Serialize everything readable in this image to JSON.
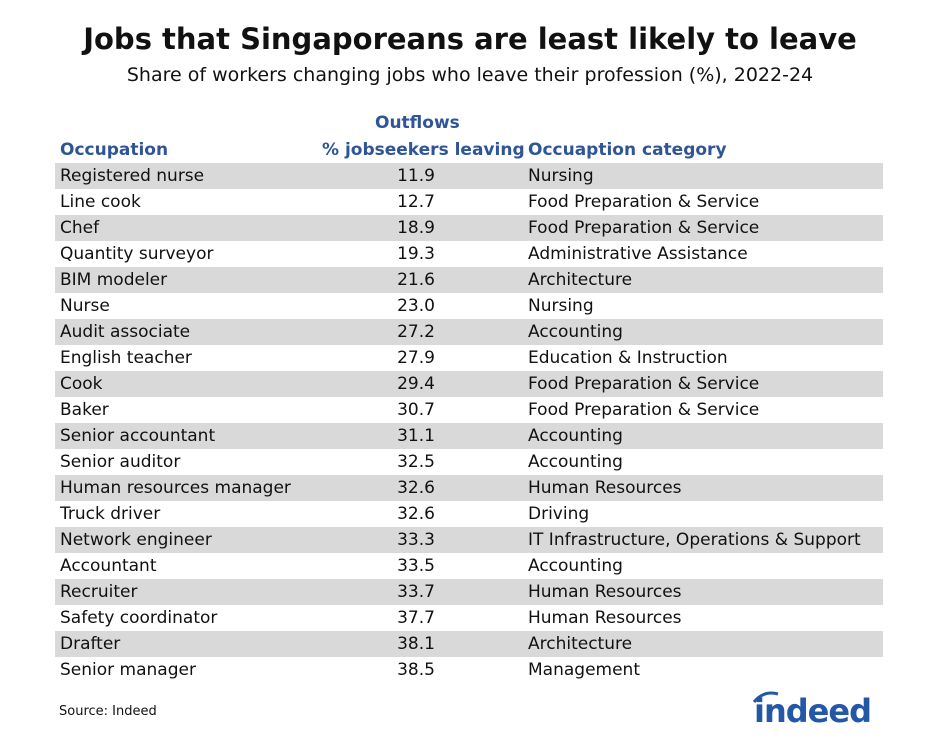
{
  "title": "Jobs that Singaporeans are least likely to leave",
  "subtitle": "Share of workers changing jobs who leave their profession (%), 2022-24",
  "headers": {
    "occupation": "Occupation",
    "outflows_top": "Outflows",
    "outflows": "% jobseekers leaving",
    "category": "Occuaption category"
  },
  "source": "Source: Indeed",
  "logo_text": "indeed",
  "colors": {
    "header": "#2f5597",
    "row_band": "#d9d9d9",
    "logo": "#2557a7"
  },
  "chart_data": {
    "type": "table",
    "columns": [
      "Occupation",
      "% jobseekers leaving",
      "Occuaption category"
    ],
    "rows": [
      [
        "Registered nurse",
        "11.9",
        "Nursing"
      ],
      [
        "Line cook",
        "12.7",
        "Food Preparation & Service"
      ],
      [
        "Chef",
        "18.9",
        "Food Preparation & Service"
      ],
      [
        "Quantity surveyor",
        "19.3",
        "Administrative Assistance"
      ],
      [
        "BIM modeler",
        "21.6",
        "Architecture"
      ],
      [
        "Nurse",
        "23.0",
        "Nursing"
      ],
      [
        "Audit associate",
        "27.2",
        "Accounting"
      ],
      [
        "English teacher",
        "27.9",
        "Education & Instruction"
      ],
      [
        "Cook",
        "29.4",
        "Food Preparation & Service"
      ],
      [
        "Baker",
        "30.7",
        "Food Preparation & Service"
      ],
      [
        "Senior accountant",
        "31.1",
        "Accounting"
      ],
      [
        "Senior auditor",
        "32.5",
        "Accounting"
      ],
      [
        "Human resources manager",
        "32.6",
        "Human Resources"
      ],
      [
        "Truck driver",
        "32.6",
        "Driving"
      ],
      [
        "Network engineer",
        "33.3",
        "IT Infrastructure, Operations & Support"
      ],
      [
        "Accountant",
        "33.5",
        "Accounting"
      ],
      [
        "Recruiter",
        "33.7",
        "Human Resources"
      ],
      [
        "Safety coordinator",
        "37.7",
        "Human Resources"
      ],
      [
        "Drafter",
        "38.1",
        "Architecture"
      ],
      [
        "Senior manager",
        "38.5",
        "Management"
      ]
    ]
  }
}
